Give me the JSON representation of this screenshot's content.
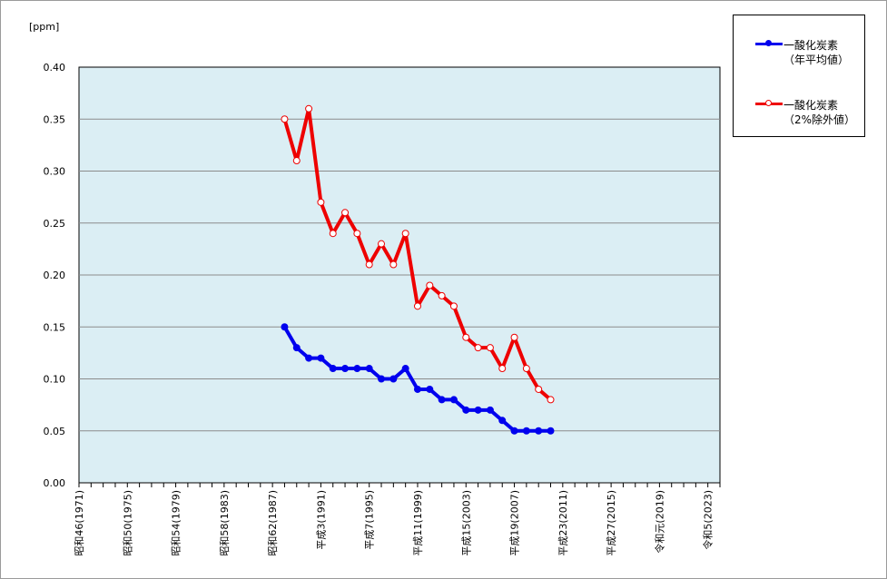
{
  "chart_data": {
    "type": "line",
    "y_unit_label": "[ppm]",
    "ylim": [
      0,
      0.4
    ],
    "y_ticks": [
      "0.00",
      "0.05",
      "0.10",
      "0.15",
      "0.20",
      "0.25",
      "0.30",
      "0.35",
      "0.40"
    ],
    "xlim": [
      1971,
      2024
    ],
    "x_ticks": [
      {
        "year": 1971,
        "label": "昭和46(1971)"
      },
      {
        "year": 1975,
        "label": "昭和50(1975)"
      },
      {
        "year": 1979,
        "label": "昭和54(1979)"
      },
      {
        "year": 1983,
        "label": "昭和58(1983)"
      },
      {
        "year": 1987,
        "label": "昭和62(1987)"
      },
      {
        "year": 1991,
        "label": "平成3(1991)"
      },
      {
        "year": 1995,
        "label": "平成7(1995)"
      },
      {
        "year": 1999,
        "label": "平成11(1999)"
      },
      {
        "year": 2003,
        "label": "平成15(2003)"
      },
      {
        "year": 2007,
        "label": "平成19(2007)"
      },
      {
        "year": 2011,
        "label": "平成23(2011)"
      },
      {
        "year": 2015,
        "label": "平成27(2015)"
      },
      {
        "year": 2019,
        "label": "令和元(2019)"
      },
      {
        "year": 2023,
        "label": "令和5(2023)"
      }
    ],
    "grid": true,
    "legend_position": "top-right",
    "colors": {
      "plot_bg": "#dbeef4",
      "grid": "#8c8c8c",
      "series1": "#0000ee",
      "series2": "#ee0000"
    },
    "series": [
      {
        "name_line1": "一酸化炭素",
        "name_line2": "（年平均値）",
        "marker": "filled",
        "x": [
          1988,
          1989,
          1990,
          1991,
          1992,
          1993,
          1994,
          1995,
          1996,
          1997,
          1998,
          1999,
          2000,
          2001,
          2002,
          2003,
          2004,
          2005,
          2006,
          2007,
          2008,
          2009,
          2010
        ],
        "values": [
          0.15,
          0.13,
          0.12,
          0.12,
          0.11,
          0.11,
          0.11,
          0.11,
          0.1,
          0.1,
          0.11,
          0.09,
          0.09,
          0.08,
          0.08,
          0.07,
          0.07,
          0.07,
          0.06,
          0.05,
          0.05,
          0.05,
          0.05
        ]
      },
      {
        "name_line1": "一酸化炭素",
        "name_line2": "（2%除外値）",
        "marker": "hollow",
        "x": [
          1988,
          1989,
          1990,
          1991,
          1992,
          1993,
          1994,
          1995,
          1996,
          1997,
          1998,
          1999,
          2000,
          2001,
          2002,
          2003,
          2004,
          2005,
          2006,
          2007,
          2008,
          2009,
          2010
        ],
        "values": [
          0.35,
          0.31,
          0.36,
          0.27,
          0.24,
          0.26,
          0.24,
          0.21,
          0.23,
          0.21,
          0.24,
          0.17,
          0.19,
          0.18,
          0.17,
          0.14,
          0.13,
          0.13,
          0.11,
          0.14,
          0.11,
          0.09,
          0.08
        ]
      }
    ]
  }
}
